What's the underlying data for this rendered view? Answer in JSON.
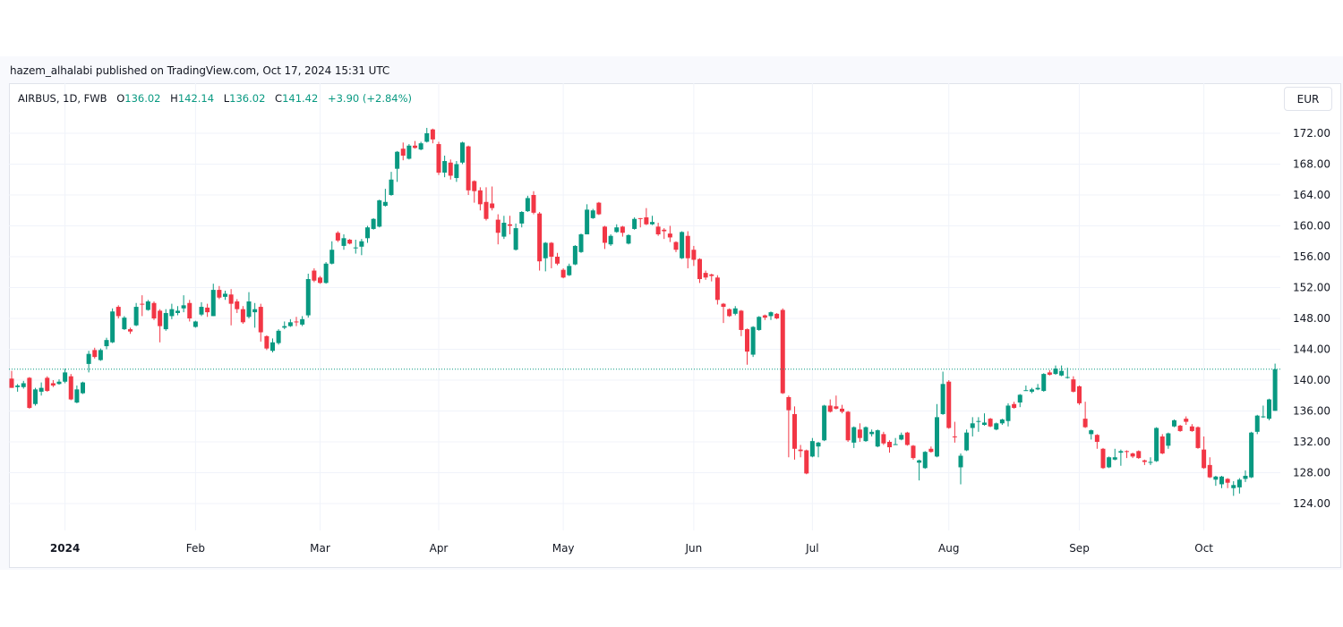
{
  "byline": "hazem_alhalabi published on TradingView.com, Oct 17, 2024 15:31 UTC",
  "legend": {
    "symbol": "AIRBUS, 1D, FWB",
    "open_label": "O",
    "open": "136.02",
    "high_label": "H",
    "high": "142.14",
    "low_label": "L",
    "low": "136.02",
    "close_label": "C",
    "close": "141.42",
    "change": "+3.90 (+2.84%)"
  },
  "currency_button": "EUR",
  "colors": {
    "up": "#089981",
    "down": "#f23645",
    "grid": "#f0f3fa"
  },
  "chart_data": {
    "type": "candlestick",
    "symbol": "AIRBUS",
    "interval": "1D",
    "exchange": "FWB",
    "currency": "EUR",
    "ylim": [
      120,
      174
    ],
    "y_ticks": [
      172,
      168,
      164,
      160,
      156,
      152,
      148,
      144,
      140,
      136,
      132,
      128,
      124
    ],
    "y_tick_labels": [
      "172.00",
      "168.00",
      "164.00",
      "160.00",
      "156.00",
      "152.00",
      "148.00",
      "144.00",
      "140.00",
      "136.00",
      "132.00",
      "128.00",
      "124.00"
    ],
    "x_ticks": [
      {
        "label": "2024",
        "index": 9,
        "bold": true
      },
      {
        "label": "Feb",
        "index": 31
      },
      {
        "label": "Mar",
        "index": 52
      },
      {
        "label": "Apr",
        "index": 72
      },
      {
        "label": "May",
        "index": 93
      },
      {
        "label": "Jun",
        "index": 115
      },
      {
        "label": "Jul",
        "index": 135
      },
      {
        "label": "Aug",
        "index": 158
      },
      {
        "label": "Sep",
        "index": 180
      },
      {
        "label": "Oct",
        "index": 201
      }
    ],
    "last_price": 141.42,
    "grid": true,
    "ohlc_columns": [
      "open",
      "high",
      "low",
      "close"
    ],
    "candles": [
      [
        140.2,
        141.2,
        139.0,
        139.0
      ],
      [
        139.1,
        139.5,
        138.5,
        139.3
      ],
      [
        139.1,
        139.9,
        138.9,
        139.6
      ],
      [
        140.3,
        140.4,
        136.3,
        136.4
      ],
      [
        136.9,
        139.0,
        136.7,
        138.8
      ],
      [
        138.5,
        139.7,
        138.0,
        139.0
      ],
      [
        140.3,
        140.5,
        138.5,
        138.6
      ],
      [
        139.6,
        140.0,
        139.1,
        139.3
      ],
      [
        139.5,
        140.1,
        139.4,
        139.8
      ],
      [
        139.8,
        141.5,
        139.6,
        141.0
      ],
      [
        140.5,
        140.8,
        137.4,
        137.5
      ],
      [
        137.1,
        139.3,
        137.0,
        138.8
      ],
      [
        138.3,
        139.8,
        138.2,
        139.7
      ],
      [
        142.1,
        143.8,
        141.0,
        143.4
      ],
      [
        143.9,
        144.2,
        142.8,
        143.0
      ],
      [
        142.6,
        144.1,
        142.5,
        143.9
      ],
      [
        144.4,
        145.5,
        144.0,
        145.2
      ],
      [
        144.9,
        149.3,
        144.8,
        148.9
      ],
      [
        149.5,
        149.7,
        148.0,
        148.3
      ],
      [
        146.6,
        148.3,
        146.5,
        148.1
      ],
      [
        146.6,
        146.8,
        146.0,
        146.3
      ],
      [
        147.1,
        150.0,
        147.0,
        149.5
      ],
      [
        149.9,
        151.0,
        148.3,
        149.8
      ],
      [
        149.1,
        150.4,
        149.0,
        150.2
      ],
      [
        150.0,
        150.2,
        147.8,
        148.0
      ],
      [
        149.0,
        149.2,
        144.9,
        147.0
      ],
      [
        146.6,
        149.2,
        146.4,
        148.7
      ],
      [
        148.3,
        149.9,
        147.9,
        149.2
      ],
      [
        148.7,
        149.6,
        148.4,
        149.0
      ],
      [
        149.3,
        151.0,
        148.8,
        149.7
      ],
      [
        150.0,
        150.4,
        147.6,
        148.0
      ],
      [
        146.9,
        147.7,
        146.8,
        147.6
      ],
      [
        148.5,
        150.1,
        148.3,
        149.5
      ],
      [
        149.4,
        149.9,
        148.2,
        148.8
      ],
      [
        148.3,
        152.5,
        148.3,
        151.7
      ],
      [
        151.7,
        152.2,
        150.5,
        150.7
      ],
      [
        150.8,
        151.6,
        150.4,
        151.2
      ],
      [
        151.1,
        151.8,
        147.1,
        149.9
      ],
      [
        150.2,
        150.5,
        148.7,
        149.2
      ],
      [
        149.2,
        149.6,
        147.3,
        147.5
      ],
      [
        148.2,
        151.4,
        148.0,
        150.2
      ],
      [
        148.8,
        150.0,
        146.8,
        149.2
      ],
      [
        149.5,
        149.9,
        145.0,
        146.2
      ],
      [
        145.7,
        145.8,
        143.9,
        144.1
      ],
      [
        143.8,
        145.4,
        143.6,
        144.9
      ],
      [
        144.8,
        146.6,
        144.6,
        146.4
      ],
      [
        146.8,
        147.6,
        146.6,
        147.0
      ],
      [
        147.0,
        147.9,
        146.9,
        147.5
      ],
      [
        147.6,
        148.2,
        147.0,
        147.5
      ],
      [
        147.2,
        148.3,
        147.0,
        147.9
      ],
      [
        148.4,
        153.8,
        148.1,
        153.1
      ],
      [
        154.2,
        154.5,
        152.7,
        152.9
      ],
      [
        153.3,
        153.5,
        152.5,
        152.6
      ],
      [
        152.6,
        155.3,
        152.5,
        155.1
      ],
      [
        155.1,
        158.0,
        155.0,
        156.9
      ],
      [
        159.1,
        159.3,
        157.9,
        158.1
      ],
      [
        157.4,
        158.9,
        156.9,
        158.4
      ],
      [
        158.2,
        158.3,
        157.6,
        157.7
      ],
      [
        157.1,
        158.2,
        156.4,
        157.2
      ],
      [
        157.3,
        158.3,
        156.2,
        158.0
      ],
      [
        158.4,
        160.0,
        157.8,
        159.8
      ],
      [
        159.6,
        161.0,
        159.5,
        160.9
      ],
      [
        159.9,
        163.4,
        159.8,
        163.3
      ],
      [
        162.6,
        164.8,
        162.5,
        163.1
      ],
      [
        164.0,
        167.0,
        163.9,
        166.0
      ],
      [
        167.4,
        169.7,
        165.7,
        169.6
      ],
      [
        170.0,
        170.8,
        168.5,
        169.1
      ],
      [
        168.7,
        170.6,
        168.6,
        170.4
      ],
      [
        170.4,
        171.0,
        170.0,
        170.1
      ],
      [
        169.9,
        170.9,
        169.8,
        170.7
      ],
      [
        170.9,
        172.7,
        170.8,
        172.0
      ],
      [
        172.5,
        172.6,
        170.7,
        171.2
      ],
      [
        170.6,
        170.9,
        166.6,
        166.9
      ],
      [
        166.9,
        169.1,
        166.3,
        168.4
      ],
      [
        168.2,
        168.6,
        166.0,
        166.5
      ],
      [
        166.2,
        168.4,
        165.7,
        168.0
      ],
      [
        168.2,
        170.9,
        168.0,
        170.8
      ],
      [
        170.3,
        170.4,
        164.0,
        164.6
      ],
      [
        165.8,
        165.9,
        163.0,
        164.5
      ],
      [
        164.6,
        165.0,
        162.0,
        162.8
      ],
      [
        163.1,
        165.0,
        160.7,
        160.9
      ],
      [
        162.9,
        165.1,
        162.0,
        162.3
      ],
      [
        160.8,
        161.5,
        157.6,
        159.1
      ],
      [
        158.6,
        161.3,
        158.3,
        160.4
      ],
      [
        160.2,
        161.3,
        158.9,
        160.0
      ],
      [
        156.9,
        160.3,
        156.8,
        159.7
      ],
      [
        160.3,
        161.9,
        159.8,
        161.8
      ],
      [
        161.9,
        163.9,
        161.8,
        163.6
      ],
      [
        164.0,
        164.5,
        161.5,
        161.7
      ],
      [
        161.6,
        161.8,
        154.2,
        155.4
      ],
      [
        155.8,
        157.9,
        154.1,
        157.8
      ],
      [
        157.8,
        157.9,
        154.5,
        156.0
      ],
      [
        156.0,
        156.5,
        154.9,
        155.1
      ],
      [
        154.3,
        154.5,
        153.2,
        153.3
      ],
      [
        153.6,
        155.1,
        153.5,
        154.8
      ],
      [
        155.0,
        157.5,
        154.9,
        157.4
      ],
      [
        156.6,
        159.0,
        156.5,
        158.9
      ],
      [
        158.9,
        162.8,
        158.9,
        162.1
      ],
      [
        161.0,
        162.2,
        160.9,
        162.0
      ],
      [
        163.0,
        163.1,
        161.4,
        161.5
      ],
      [
        159.9,
        160.0,
        157.0,
        157.8
      ],
      [
        157.6,
        158.9,
        157.4,
        158.7
      ],
      [
        159.2,
        160.2,
        159.1,
        159.8
      ],
      [
        159.9,
        160.0,
        158.6,
        159.1
      ],
      [
        157.7,
        158.9,
        157.6,
        158.8
      ],
      [
        159.6,
        161.1,
        159.5,
        160.9
      ],
      [
        161.0,
        161.0,
        159.8,
        160.9
      ],
      [
        161.1,
        162.3,
        160.1,
        160.2
      ],
      [
        160.2,
        161.3,
        160.1,
        160.5
      ],
      [
        159.9,
        160.4,
        158.7,
        158.9
      ],
      [
        159.5,
        159.7,
        158.3,
        159.3
      ],
      [
        159.0,
        160.0,
        157.9,
        158.5
      ],
      [
        157.9,
        158.0,
        156.6,
        156.9
      ],
      [
        155.8,
        159.3,
        155.7,
        159.2
      ],
      [
        158.7,
        159.3,
        154.5,
        155.8
      ],
      [
        156.9,
        157.4,
        154.8,
        155.6
      ],
      [
        155.7,
        155.8,
        152.6,
        153.1
      ],
      [
        153.9,
        154.2,
        153.0,
        153.3
      ],
      [
        153.7,
        153.8,
        152.8,
        153.5
      ],
      [
        153.3,
        153.6,
        149.8,
        150.4
      ],
      [
        149.9,
        150.0,
        147.4,
        149.5
      ],
      [
        149.2,
        149.3,
        148.2,
        148.3
      ],
      [
        148.6,
        149.6,
        148.4,
        149.3
      ],
      [
        149.0,
        149.1,
        145.7,
        146.5
      ],
      [
        146.6,
        146.7,
        142.0,
        143.7
      ],
      [
        143.3,
        147.0,
        143.0,
        146.9
      ],
      [
        146.5,
        148.3,
        146.4,
        148.2
      ],
      [
        148.4,
        148.5,
        147.8,
        148.1
      ],
      [
        148.3,
        148.9,
        147.8,
        148.8
      ],
      [
        148.6,
        148.7,
        147.9,
        148.0
      ],
      [
        149.1,
        149.3,
        138.2,
        138.3
      ],
      [
        137.8,
        138.0,
        130.0,
        136.1
      ],
      [
        135.6,
        136.6,
        129.7,
        131.1
      ],
      [
        131.0,
        131.6,
        130.0,
        130.8
      ],
      [
        130.9,
        131.0,
        127.8,
        127.9
      ],
      [
        130.1,
        132.5,
        130.0,
        132.1
      ],
      [
        131.4,
        132.0,
        130.0,
        131.9
      ],
      [
        132.2,
        136.8,
        132.1,
        136.7
      ],
      [
        136.7,
        137.5,
        135.8,
        135.9
      ],
      [
        136.6,
        138.0,
        136.2,
        136.3
      ],
      [
        136.3,
        136.8,
        135.7,
        135.9
      ],
      [
        135.9,
        136.0,
        132.0,
        132.2
      ],
      [
        131.9,
        134.0,
        131.2,
        133.9
      ],
      [
        133.6,
        134.4,
        132.0,
        132.5
      ],
      [
        132.1,
        134.0,
        132.0,
        133.9
      ],
      [
        133.0,
        133.6,
        132.7,
        133.3
      ],
      [
        131.4,
        133.6,
        131.3,
        133.5
      ],
      [
        133.0,
        133.3,
        131.6,
        131.8
      ],
      [
        132.0,
        132.2,
        130.6,
        131.3
      ],
      [
        131.6,
        132.5,
        131.6,
        131.7
      ],
      [
        132.3,
        133.2,
        132.2,
        132.9
      ],
      [
        133.2,
        133.3,
        131.5,
        131.6
      ],
      [
        131.5,
        131.6,
        129.7,
        129.9
      ],
      [
        129.3,
        129.7,
        127.0,
        129.6
      ],
      [
        128.6,
        130.8,
        128.5,
        130.7
      ],
      [
        131.1,
        131.4,
        130.6,
        130.7
      ],
      [
        130.1,
        136.9,
        130.0,
        135.2
      ],
      [
        135.6,
        141.1,
        135.5,
        139.5
      ],
      [
        139.8,
        140.0,
        133.7,
        133.8
      ],
      [
        132.7,
        134.6,
        131.9,
        132.6
      ],
      [
        128.7,
        130.5,
        126.5,
        130.2
      ],
      [
        130.9,
        133.6,
        130.8,
        133.2
      ],
      [
        133.8,
        135.2,
        132.7,
        134.4
      ],
      [
        134.6,
        135.2,
        133.3,
        134.7
      ],
      [
        134.2,
        135.7,
        134.1,
        134.5
      ],
      [
        135.0,
        135.1,
        133.9,
        134.0
      ],
      [
        133.6,
        134.5,
        133.5,
        134.4
      ],
      [
        134.4,
        135.0,
        134.2,
        134.9
      ],
      [
        134.7,
        137.0,
        134.0,
        136.7
      ],
      [
        136.9,
        137.2,
        136.3,
        136.4
      ],
      [
        137.1,
        138.2,
        136.5,
        138.1
      ],
      [
        138.6,
        139.3,
        138.6,
        138.7
      ],
      [
        138.5,
        139.0,
        138.3,
        138.8
      ],
      [
        138.8,
        139.5,
        138.7,
        139.0
      ],
      [
        138.6,
        140.9,
        138.5,
        140.8
      ],
      [
        141.0,
        141.3,
        140.6,
        140.7
      ],
      [
        140.8,
        141.9,
        140.7,
        141.5
      ],
      [
        140.6,
        141.9,
        140.5,
        141.2
      ],
      [
        140.3,
        141.6,
        140.2,
        140.4
      ],
      [
        140.1,
        140.5,
        138.4,
        138.5
      ],
      [
        139.2,
        139.3,
        136.8,
        137.0
      ],
      [
        135.0,
        137.2,
        133.8,
        133.9
      ],
      [
        133.0,
        133.6,
        132.3,
        133.5
      ],
      [
        132.9,
        133.0,
        131.1,
        132.0
      ],
      [
        131.1,
        131.2,
        128.5,
        128.6
      ],
      [
        128.7,
        130.1,
        128.6,
        130.0
      ],
      [
        129.7,
        131.1,
        129.6,
        130.0
      ],
      [
        130.6,
        131.0,
        128.9,
        130.8
      ],
      [
        130.8,
        130.9,
        129.9,
        130.7
      ],
      [
        130.5,
        130.6,
        129.9,
        130.1
      ],
      [
        130.8,
        130.9,
        129.8,
        129.9
      ],
      [
        129.6,
        129.7,
        129.0,
        129.4
      ],
      [
        129.3,
        130.0,
        129.0,
        129.4
      ],
      [
        129.5,
        133.9,
        129.4,
        133.8
      ],
      [
        132.7,
        133.0,
        130.4,
        130.5
      ],
      [
        131.5,
        133.2,
        131.1,
        133.1
      ],
      [
        134.0,
        134.9,
        133.9,
        134.8
      ],
      [
        134.1,
        134.2,
        133.3,
        133.4
      ],
      [
        135.0,
        135.3,
        134.2,
        134.6
      ],
      [
        134.0,
        134.3,
        133.3,
        133.4
      ],
      [
        133.9,
        134.0,
        131.1,
        131.2
      ],
      [
        131.0,
        132.7,
        128.5,
        128.6
      ],
      [
        129.0,
        130.0,
        127.3,
        127.4
      ],
      [
        127.1,
        127.6,
        126.3,
        127.5
      ],
      [
        126.5,
        127.6,
        126.0,
        127.5
      ],
      [
        127.2,
        127.3,
        126.0,
        126.7
      ],
      [
        126.0,
        126.9,
        125.0,
        126.4
      ],
      [
        126.1,
        127.3,
        125.3,
        127.1
      ],
      [
        127.2,
        128.3,
        126.8,
        127.6
      ],
      [
        127.4,
        133.3,
        127.3,
        133.2
      ],
      [
        133.3,
        135.5,
        133.0,
        135.4
      ],
      [
        135.2,
        136.7,
        135.1,
        135.3
      ],
      [
        135.0,
        137.6,
        134.8,
        137.5
      ],
      [
        136.02,
        142.14,
        136.02,
        141.42
      ]
    ]
  }
}
